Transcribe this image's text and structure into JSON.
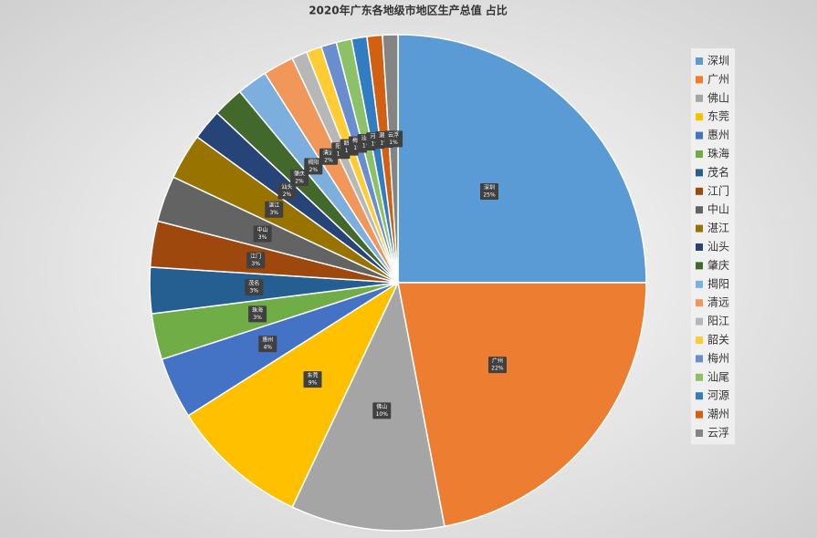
{
  "chart_data": {
    "type": "pie",
    "title": "2020年广东各地级市地区生产总值 占比",
    "categories": [
      "深圳",
      "广州",
      "佛山",
      "东莞",
      "惠州",
      "珠海",
      "茂名",
      "江门",
      "中山",
      "湛江",
      "汕头",
      "肇庆",
      "揭阳",
      "清远",
      "阳江",
      "韶关",
      "梅州",
      "汕尾",
      "河源",
      "潮州",
      "云浮"
    ],
    "values": [
      25,
      22,
      10,
      9,
      4,
      3,
      3,
      3,
      3,
      3,
      2,
      2,
      2,
      2,
      1,
      1,
      1,
      1,
      1,
      1,
      1
    ],
    "value_labels": [
      "25%",
      "22%",
      "10%",
      "9%",
      "4%",
      "3%",
      "3%",
      "3%",
      "3%",
      "3%",
      "2%",
      "2%",
      "2%",
      "2%",
      "1%",
      "1%",
      "1%",
      "1%",
      "1%",
      "1%",
      "1%"
    ],
    "colors": [
      "#5b9bd5",
      "#ed7d31",
      "#a5a5a5",
      "#ffc000",
      "#4472c4",
      "#70ad47",
      "#255e91",
      "#9e480e",
      "#636363",
      "#997300",
      "#264478",
      "#43682b",
      "#7cafdd",
      "#f1975a",
      "#b7b7b7",
      "#ffcd33",
      "#698ed0",
      "#8cc168",
      "#327dc2",
      "#d26012",
      "#848484"
    ],
    "legend": "right"
  }
}
